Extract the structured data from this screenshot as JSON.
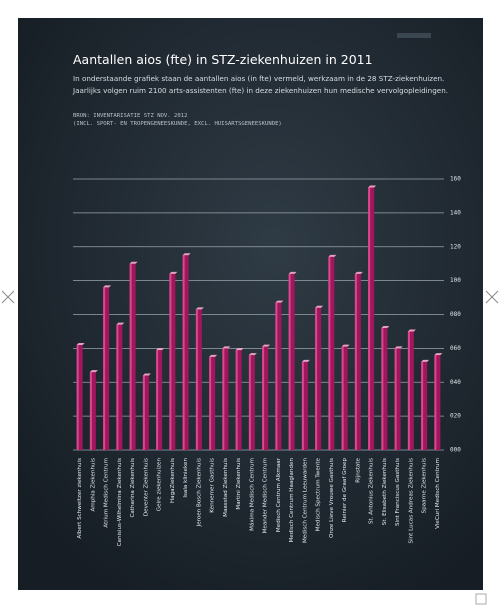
{
  "chart_data": {
    "type": "bar",
    "title": "Aantallen aios (fte) in STZ-ziekenhuizen in 2011",
    "subtitle": [
      "In onderstaande grafiek staan de aantallen aios (in fte) vermeld, werkzaam in de 28 STZ-ziekenhuizen.",
      "Jaarlijks volgen ruim 2100 arts-assistenten (fte) in deze ziekenhuizen hun medische vervolgopleidingen."
    ],
    "source": [
      "BRON: INVENTARISATIE STZ NOV. 2012",
      "(INCL. SPORT- EN TROPENGENEESKUNDE, EXCL. HUISARTSGENEESKUNDE)"
    ],
    "categories": [
      "Albert Schweitzer ziekenhuis",
      "Amphia Ziekenhuis",
      "Atrium Medisch Centrum",
      "Canisius-Wilhelmina Ziekenhuis",
      "Catharina Ziekenhuis",
      "Deventer Ziekenhuis",
      "Gelre ziekenhuizen",
      "HagaZiekenhuis",
      "Isala klinieken",
      "Jeroen Bosch Ziekenhuis",
      "Kennemer Gasthuis",
      "Maasstad Ziekenhuis",
      "Martini Ziekenhuis",
      "Máxima Medisch Centrum",
      "Meander Medisch Centrum",
      "Medisch Centrum Alkmaar",
      "Medisch Centrum Haaglanden",
      "Medisch Centrum Leeuwarden",
      "Medisch Spectrum Twente",
      "Onze Lieve Vrouwe Gasthuis",
      "Reinier de Graaf Groep",
      "Rijnstate",
      "St. Antonius Ziekenhuis",
      "St. Elisabeth Ziekenhuis",
      "Sint Franciscus Gasthuis",
      "Sint Lucas Andreas Ziekenhuis",
      "Spaarne Ziekenhuis",
      "VieCuri Medisch Centrum"
    ],
    "values": [
      62,
      46,
      96,
      74,
      110,
      44,
      59,
      104,
      115,
      83,
      55,
      60,
      59,
      56,
      61,
      87,
      104,
      52,
      84,
      114,
      61,
      104,
      155,
      72,
      60,
      70,
      52,
      56
    ],
    "color": "#a3155c",
    "ylim": [
      0,
      160
    ],
    "yticks": [
      {
        "value": 0,
        "label": "000"
      },
      {
        "value": 20,
        "label": "020"
      },
      {
        "value": 40,
        "label": "040"
      },
      {
        "value": 60,
        "label": "060"
      },
      {
        "value": 80,
        "label": "080"
      },
      100,
      120,
      140,
      160
    ],
    "grid": true
  }
}
